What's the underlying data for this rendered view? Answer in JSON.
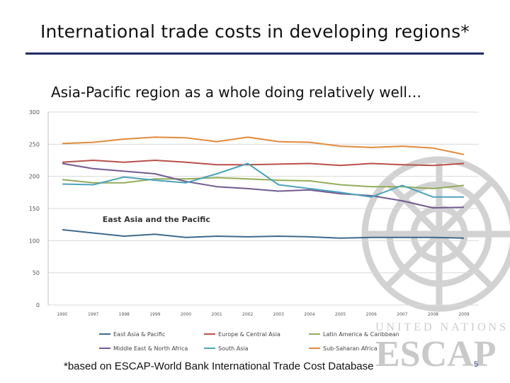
{
  "slide": {
    "title": "International trade costs in developing regions*",
    "footnote": "*based on ESCAP-World Bank International Trade Cost Database",
    "page_number": "5",
    "watermark_text": [
      "UNITED NATIONS",
      "ESCAP"
    ]
  },
  "chart_data": {
    "type": "line",
    "title": "Asia-Pacific region as a whole doing relatively well…",
    "xlabel": "",
    "ylabel": "",
    "ylim": [
      0,
      300
    ],
    "yticks": [
      0,
      50,
      100,
      150,
      200,
      250,
      300
    ],
    "grid": "horizontal",
    "legend_position": "bottom",
    "x": [
      "1995",
      "1997",
      "1998",
      "1999",
      "2000",
      "2001",
      "2002",
      "2003",
      "2004",
      "2005",
      "2006",
      "2007",
      "2008",
      "2009"
    ],
    "annotation": {
      "text": "East Asia and the Pacific",
      "x_index": 1.3,
      "y": 129
    },
    "series": [
      {
        "name": "East Asia & Pacific",
        "color": "#3f6a8c",
        "values": [
          117,
          112,
          107,
          110,
          105,
          107,
          106,
          107,
          106,
          104,
          105,
          105,
          105,
          104
        ]
      },
      {
        "name": "Europe & Central Asia",
        "color": "#b8514a",
        "values": [
          222,
          225,
          222,
          225,
          222,
          218,
          218,
          219,
          220,
          217,
          220,
          218,
          217,
          220
        ]
      },
      {
        "name": "Latin America & Caribbean",
        "color": "#93ad5a",
        "values": [
          195,
          190,
          190,
          196,
          196,
          198,
          196,
          194,
          193,
          187,
          184,
          184,
          181,
          186
        ]
      },
      {
        "name": "Middle East & North Africa",
        "color": "#735b8f",
        "values": [
          220,
          212,
          208,
          204,
          192,
          184,
          181,
          177,
          179,
          173,
          170,
          162,
          151,
          152
        ]
      },
      {
        "name": "South Asia",
        "color": "#4ba3bb",
        "values": [
          188,
          187,
          199,
          194,
          190,
          204,
          220,
          187,
          181,
          175,
          168,
          186,
          168,
          168
        ]
      },
      {
        "name": "Sub-Saharan Africa",
        "color": "#e18b3c",
        "values": [
          251,
          253,
          258,
          261,
          260,
          254,
          261,
          254,
          253,
          247,
          245,
          247,
          244,
          234
        ]
      }
    ]
  }
}
